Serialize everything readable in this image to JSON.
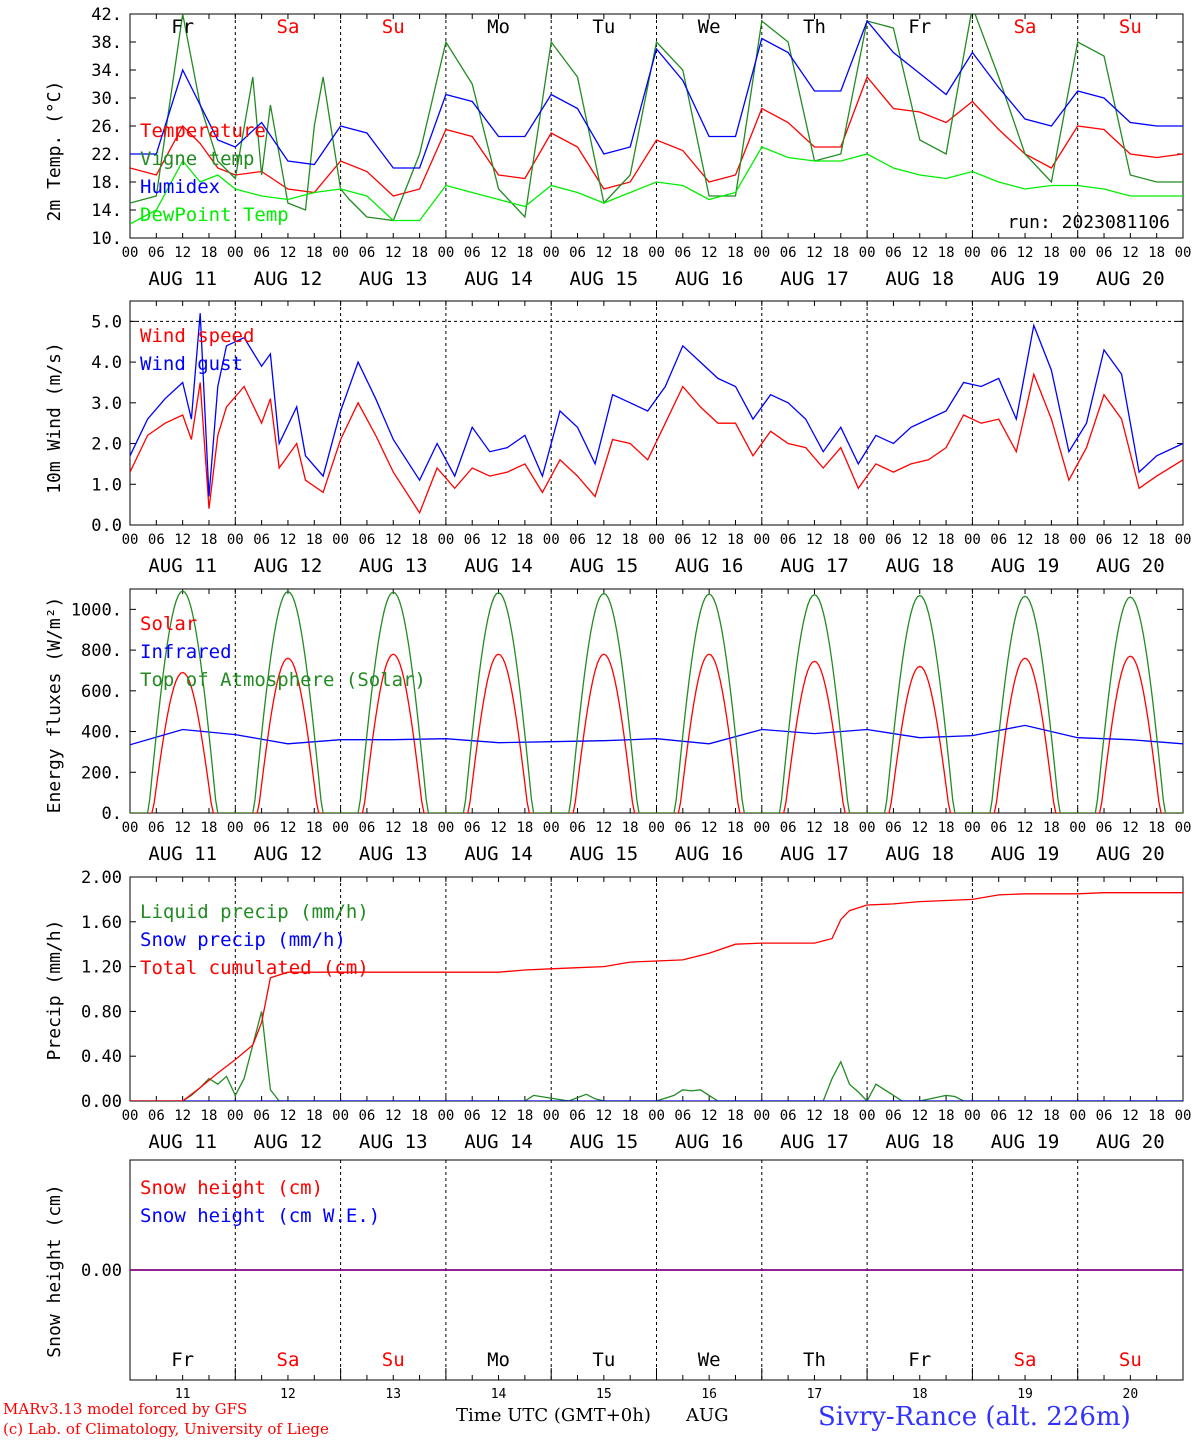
{
  "colors": {
    "red": "#ff0000",
    "green": "#228b22",
    "lightgreen": "#00ee00",
    "blue": "#0000ff",
    "purple": "#800080",
    "frame": "#000000"
  },
  "hour_ticks": [
    "00",
    "06",
    "12",
    "18"
  ],
  "date_labels": [
    "AUG 11",
    "AUG 12",
    "AUG 13",
    "AUG 14",
    "AUG 15",
    "AUG 16",
    "AUG 17",
    "AUG 18",
    "AUG 19",
    "AUG 20"
  ],
  "weekdays": [
    {
      "label": "Fr",
      "weekend": false
    },
    {
      "label": "Sa",
      "weekend": true
    },
    {
      "label": "Su",
      "weekend": true
    },
    {
      "label": "Mo",
      "weekend": false
    },
    {
      "label": "Tu",
      "weekend": false
    },
    {
      "label": "We",
      "weekend": false
    },
    {
      "label": "Th",
      "weekend": false
    },
    {
      "label": "Fr",
      "weekend": false
    },
    {
      "label": "Sa",
      "weekend": true
    },
    {
      "label": "Su",
      "weekend": true
    }
  ],
  "day_numbers": [
    "11",
    "12",
    "13",
    "14",
    "15",
    "16",
    "17",
    "18",
    "19",
    "20"
  ],
  "chart_data": [
    {
      "type": "line",
      "ylabel": "2m Temp. (°C)",
      "ylim": [
        10,
        42
      ],
      "yticks": [
        "10.",
        "14.",
        "18.",
        "22.",
        "26.",
        "30.",
        "34.",
        "38.",
        "42."
      ],
      "x_unit": "hours since AUG 11 00 UTC",
      "xlim": [
        0,
        240
      ],
      "annotation": "run: 2023081106",
      "series": [
        {
          "name": "Temperature",
          "color": "red",
          "x": [
            0,
            6,
            12,
            16,
            20,
            24,
            30,
            36,
            42,
            48,
            54,
            60,
            66,
            72,
            78,
            84,
            90,
            96,
            102,
            108,
            114,
            120,
            126,
            132,
            138,
            144,
            150,
            156,
            162,
            168,
            174,
            180,
            186,
            192,
            198,
            204,
            210,
            216,
            222,
            228,
            234,
            240
          ],
          "y": [
            20,
            19,
            26,
            23.5,
            20,
            19,
            19.5,
            17,
            16.5,
            21,
            19.5,
            16,
            17,
            25.5,
            24.5,
            19,
            18.5,
            25,
            23,
            17,
            18,
            24,
            22.5,
            18,
            19,
            28.5,
            26.5,
            23,
            23,
            33,
            28.5,
            28,
            26.5,
            29.5,
            25.5,
            22,
            20,
            26,
            25.5,
            22,
            21.5,
            22
          ]
        },
        {
          "name": "Vigne temp",
          "color": "green",
          "x": [
            0,
            6,
            12,
            16,
            20,
            24,
            28,
            30,
            32,
            36,
            40,
            42,
            44,
            48,
            50,
            54,
            60,
            66,
            72,
            78,
            84,
            90,
            96,
            102,
            108,
            114,
            120,
            126,
            132,
            138,
            144,
            150,
            156,
            162,
            168,
            174,
            180,
            186,
            192,
            198,
            204,
            210,
            216,
            222,
            228,
            234,
            240
          ],
          "y": [
            15,
            16,
            42,
            29,
            21,
            18.5,
            33,
            19,
            29,
            15,
            14,
            26,
            33,
            17,
            15.5,
            13,
            12.5,
            22,
            38,
            32,
            17,
            13,
            38,
            33,
            15,
            19,
            38,
            34,
            16,
            16,
            41,
            38,
            21,
            22,
            41,
            40,
            24,
            22,
            43,
            33,
            22,
            18,
            38,
            36,
            19,
            18,
            18
          ]
        },
        {
          "name": "Humidex",
          "color": "blue",
          "x": [
            0,
            6,
            12,
            16,
            20,
            24,
            30,
            36,
            42,
            48,
            54,
            60,
            66,
            72,
            78,
            84,
            90,
            96,
            102,
            108,
            114,
            120,
            126,
            132,
            138,
            144,
            150,
            156,
            162,
            168,
            174,
            180,
            186,
            192,
            198,
            204,
            210,
            216,
            222,
            228,
            234,
            240
          ],
          "y": [
            22,
            22,
            34,
            29,
            24,
            23,
            26.5,
            21,
            20.5,
            26,
            25,
            20,
            20,
            30.5,
            29.5,
            24.5,
            24.5,
            30.5,
            28.5,
            22,
            23,
            37,
            32.5,
            24.5,
            24.5,
            38.5,
            36.5,
            31,
            31,
            41,
            36.5,
            33.5,
            30.5,
            36.5,
            31.5,
            27,
            26,
            31,
            30,
            26.5,
            26,
            26
          ]
        },
        {
          "name": "DewPoint Temp",
          "color": "lightgreen",
          "x": [
            0,
            6,
            12,
            16,
            20,
            24,
            30,
            36,
            42,
            48,
            54,
            60,
            66,
            72,
            78,
            84,
            90,
            96,
            102,
            108,
            114,
            120,
            126,
            132,
            138,
            144,
            150,
            156,
            162,
            168,
            174,
            180,
            186,
            192,
            198,
            204,
            210,
            216,
            222,
            228,
            234,
            240
          ],
          "y": [
            12,
            14,
            21,
            18,
            19,
            17,
            16,
            15.5,
            16.5,
            17,
            16,
            12.5,
            12.5,
            17.5,
            16.5,
            15.5,
            14.5,
            17.5,
            16.5,
            15,
            16.5,
            18,
            17.5,
            15.5,
            16.5,
            23,
            21.5,
            21,
            21,
            22,
            20,
            19,
            18.5,
            19.5,
            18,
            17,
            17.5,
            17.5,
            17,
            16,
            16,
            16
          ]
        }
      ]
    },
    {
      "type": "line",
      "ylabel": "10m Wind (m/s)",
      "ylim": [
        0,
        5.5
      ],
      "yticks": [
        "0.0",
        "1.0",
        "2.0",
        "3.0",
        "4.0",
        "5.0"
      ],
      "x_unit": "hours since AUG 11 00 UTC",
      "xlim": [
        0,
        240
      ],
      "series": [
        {
          "name": "Wind speed",
          "color": "red",
          "x": [
            0,
            4,
            8,
            12,
            14,
            16,
            18,
            20,
            22,
            26,
            30,
            32,
            34,
            38,
            40,
            44,
            48,
            52,
            56,
            60,
            66,
            70,
            74,
            78,
            82,
            86,
            90,
            94,
            98,
            102,
            106,
            110,
            114,
            118,
            122,
            126,
            130,
            134,
            138,
            142,
            146,
            150,
            154,
            158,
            162,
            166,
            170,
            174,
            178,
            182,
            186,
            190,
            194,
            198,
            202,
            206,
            210,
            214,
            218,
            222,
            226,
            230,
            234,
            240
          ],
          "y": [
            1.3,
            2.2,
            2.5,
            2.7,
            2.1,
            3.5,
            0.4,
            2.2,
            2.9,
            3.4,
            2.5,
            3.1,
            1.4,
            2.0,
            1.1,
            0.8,
            2.1,
            3.0,
            2.2,
            1.3,
            0.3,
            1.4,
            0.9,
            1.4,
            1.2,
            1.3,
            1.5,
            0.8,
            1.6,
            1.2,
            0.7,
            2.1,
            2.0,
            1.6,
            2.5,
            3.4,
            2.9,
            2.5,
            2.5,
            1.7,
            2.3,
            2.0,
            1.9,
            1.4,
            1.9,
            0.9,
            1.5,
            1.3,
            1.5,
            1.6,
            1.9,
            2.7,
            2.5,
            2.6,
            1.8,
            3.7,
            2.6,
            1.1,
            1.9,
            3.2,
            2.6,
            0.9,
            1.2,
            1.6
          ]
        },
        {
          "name": "Wind gust",
          "color": "blue",
          "x": [
            0,
            4,
            8,
            12,
            14,
            16,
            18,
            20,
            22,
            26,
            30,
            32,
            34,
            38,
            40,
            44,
            48,
            52,
            56,
            60,
            66,
            70,
            74,
            78,
            82,
            86,
            90,
            94,
            98,
            102,
            106,
            110,
            114,
            118,
            122,
            126,
            130,
            134,
            138,
            142,
            146,
            150,
            154,
            158,
            162,
            166,
            170,
            174,
            178,
            182,
            186,
            190,
            194,
            198,
            202,
            206,
            210,
            214,
            218,
            222,
            226,
            230,
            234,
            240
          ],
          "y": [
            1.7,
            2.6,
            3.1,
            3.5,
            2.6,
            5.2,
            0.7,
            3.4,
            4.4,
            4.6,
            3.9,
            4.2,
            2.0,
            2.9,
            1.7,
            1.2,
            2.8,
            4.0,
            3.1,
            2.1,
            1.1,
            2.0,
            1.2,
            2.4,
            1.8,
            1.9,
            2.2,
            1.2,
            2.8,
            2.4,
            1.5,
            3.2,
            3.0,
            2.8,
            3.4,
            4.4,
            4.0,
            3.6,
            3.4,
            2.6,
            3.2,
            3.0,
            2.6,
            1.8,
            2.4,
            1.5,
            2.2,
            2.0,
            2.4,
            2.6,
            2.8,
            3.5,
            3.4,
            3.6,
            2.6,
            4.9,
            3.8,
            1.8,
            2.5,
            4.3,
            3.7,
            1.3,
            1.7,
            2.0
          ]
        }
      ]
    },
    {
      "type": "line",
      "ylabel": "Energy fluxes (W/m²)",
      "ylim": [
        0,
        1100
      ],
      "yticks": [
        "0.",
        "200.",
        "400.",
        "600.",
        "800.",
        "1000."
      ],
      "x_unit": "hours since AUG 11 00 UTC",
      "xlim": [
        0,
        240
      ],
      "series": [
        {
          "name": "Solar",
          "color": "red",
          "peak_hour": 12,
          "peaks": [
            690,
            760,
            780,
            780,
            780,
            780,
            745,
            720,
            760,
            770
          ]
        },
        {
          "name": "Infrared",
          "color": "blue",
          "x": [
            0,
            12,
            24,
            36,
            48,
            60,
            72,
            84,
            96,
            108,
            120,
            132,
            144,
            156,
            168,
            180,
            192,
            204,
            216,
            228,
            240
          ],
          "y": [
            335,
            410,
            385,
            340,
            360,
            360,
            365,
            345,
            350,
            355,
            365,
            340,
            410,
            390,
            410,
            370,
            380,
            430,
            370,
            360,
            340
          ]
        },
        {
          "name": "Top of Atmosphere (Solar)",
          "color": "green",
          "peak_hour": 12,
          "peaks": [
            1090,
            1088,
            1085,
            1082,
            1078,
            1075,
            1072,
            1068,
            1064,
            1060
          ]
        }
      ]
    },
    {
      "type": "line",
      "ylabel": "Precip (mm/h)",
      "ylim": [
        0,
        2.0
      ],
      "yticks": [
        "0.00",
        "0.40",
        "0.80",
        "1.20",
        "1.60",
        "2.00"
      ],
      "x_unit": "hours since AUG 11 00 UTC",
      "xlim": [
        0,
        240
      ],
      "series": [
        {
          "name": "Liquid precip (mm/h)",
          "color": "green",
          "x": [
            0,
            12,
            14,
            16,
            18,
            20,
            22,
            24,
            26,
            28,
            30,
            32,
            34,
            36,
            90,
            92,
            100,
            102,
            104,
            106,
            108,
            110,
            120,
            124,
            126,
            128,
            130,
            132,
            134,
            136,
            158,
            160,
            162,
            164,
            166,
            168,
            170,
            176,
            180,
            186,
            188,
            190,
            192,
            204,
            222,
            240
          ],
          "y": [
            0,
            0,
            0.05,
            0.12,
            0.2,
            0.15,
            0.22,
            0.05,
            0.2,
            0.5,
            0.8,
            0.1,
            0,
            0,
            0,
            0.05,
            0,
            0.03,
            0.06,
            0.02,
            0,
            0,
            0,
            0.05,
            0.1,
            0.09,
            0.1,
            0.05,
            0,
            0,
            0,
            0.2,
            0.35,
            0.15,
            0.08,
            0,
            0.15,
            0,
            0,
            0.05,
            0.04,
            0,
            0,
            0,
            0,
            0
          ]
        },
        {
          "name": "Snow precip (mm/h)",
          "color": "blue",
          "x": [
            0,
            240
          ],
          "y": [
            0,
            0
          ]
        },
        {
          "name": "Total cumulated (cm)",
          "color": "red",
          "x": [
            0,
            12,
            16,
            20,
            24,
            28,
            30,
            32,
            36,
            48,
            60,
            72,
            84,
            90,
            96,
            102,
            108,
            114,
            120,
            126,
            132,
            138,
            144,
            150,
            156,
            160,
            162,
            164,
            168,
            174,
            180,
            186,
            192,
            198,
            204,
            210,
            216,
            222,
            228,
            240
          ],
          "y": [
            0,
            0,
            0.12,
            0.25,
            0.37,
            0.5,
            0.7,
            1.1,
            1.15,
            1.15,
            1.15,
            1.15,
            1.15,
            1.17,
            1.18,
            1.19,
            1.2,
            1.24,
            1.25,
            1.26,
            1.32,
            1.4,
            1.41,
            1.41,
            1.41,
            1.45,
            1.62,
            1.7,
            1.75,
            1.76,
            1.78,
            1.79,
            1.8,
            1.84,
            1.85,
            1.85,
            1.85,
            1.86,
            1.86,
            1.86
          ]
        }
      ]
    },
    {
      "type": "line",
      "ylabel": "Snow height (cm)",
      "yticks": [
        "0.00"
      ],
      "x_unit": "hours since AUG 11 00 UTC",
      "xlim": [
        0,
        240
      ],
      "series": [
        {
          "name": "Snow height (cm)",
          "color": "red",
          "x": [
            0,
            240
          ],
          "y": [
            0,
            0
          ]
        },
        {
          "name": "Snow height (cm W.E.)",
          "color": "blue",
          "x": [
            0,
            240
          ],
          "y": [
            0,
            0
          ]
        }
      ]
    }
  ],
  "footer": {
    "credit_line1": "MARv3.13 model forced by GFS",
    "credit_line2": "(c) Lab. of Climatology, University of Liege",
    "time_label": "Time UTC (GMT+0h)",
    "month": "AUG",
    "station": "Sivry-Rance (alt. 226m)"
  }
}
